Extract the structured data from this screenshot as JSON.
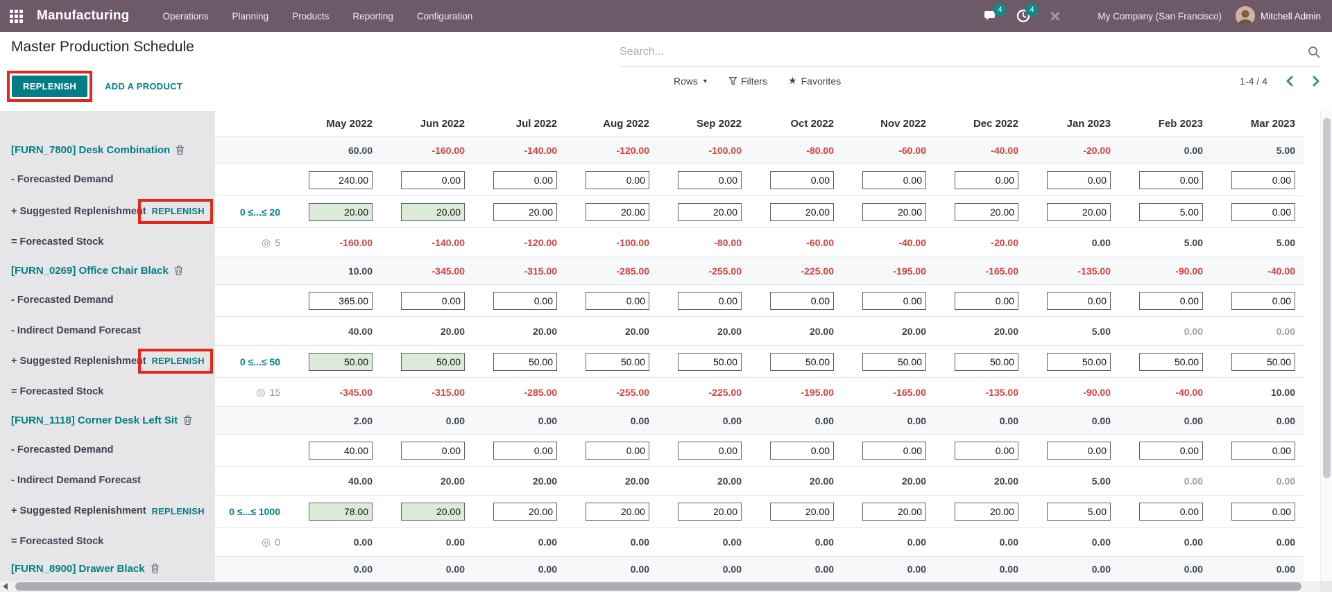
{
  "navbar": {
    "app": "Manufacturing",
    "menus": [
      "Operations",
      "Planning",
      "Products",
      "Reporting",
      "Configuration"
    ],
    "messages_badge": "4",
    "activities_badge": "4",
    "company": "My Company (San Francisco)",
    "user": "Mitchell Admin"
  },
  "control_panel": {
    "title": "Master Production Schedule",
    "replenish_button": "REPLENISH",
    "add_product": "ADD A PRODUCT",
    "search_placeholder": "Search...",
    "rows_button": "Rows",
    "filters_button": "Filters",
    "favorites_button": "Favorites",
    "pager": "1-4 / 4"
  },
  "colors": {
    "accent": "#017e84",
    "navbar_bg": "#6d5968",
    "badge": "#0c8d87",
    "negative": "#d64040",
    "annotation": "#e3271d",
    "green_cell": "#dcebd8"
  },
  "table": {
    "months": [
      "May 2022",
      "Jun 2022",
      "Jul 2022",
      "Aug 2022",
      "Sep 2022",
      "Oct 2022",
      "Nov 2022",
      "Dec 2022",
      "Jan 2023",
      "Feb 2023",
      "Mar 2023"
    ],
    "labels": {
      "demand": "- Forecasted Demand",
      "indirect": "- Indirect Demand Forecast",
      "replenishment": "+ Suggested Replenishment",
      "replenish_link": "REPLENISH",
      "stock": "= Forecasted Stock",
      "target_icon": "◎"
    },
    "products": [
      {
        "name": "[FURN_7800] Desk Combination",
        "summary": [
          "60.00",
          "-160.00",
          "-140.00",
          "-120.00",
          "-100.00",
          "-80.00",
          "-60.00",
          "-40.00",
          "-20.00",
          "0.00",
          "5.00"
        ],
        "demand": [
          "240.00",
          "0.00",
          "0.00",
          "0.00",
          "0.00",
          "0.00",
          "0.00",
          "0.00",
          "0.00",
          "0.00",
          "0.00"
        ],
        "indirect": null,
        "indirect_muted": [],
        "replenishment": [
          "20.00",
          "20.00",
          "20.00",
          "20.00",
          "20.00",
          "20.00",
          "20.00",
          "20.00",
          "20.00",
          "5.00",
          "0.00"
        ],
        "replenishment_green": [
          0,
          1
        ],
        "range": "0 ≤...≤ 20",
        "target": "5",
        "stock": [
          "-160.00",
          "-140.00",
          "-120.00",
          "-100.00",
          "-80.00",
          "-60.00",
          "-40.00",
          "-20.00",
          "0.00",
          "5.00",
          "5.00"
        ],
        "replenish_annotated": true,
        "summary_only": false
      },
      {
        "name": "[FURN_0269] Office Chair Black",
        "summary": [
          "10.00",
          "-345.00",
          "-315.00",
          "-285.00",
          "-255.00",
          "-225.00",
          "-195.00",
          "-165.00",
          "-135.00",
          "-90.00",
          "-40.00"
        ],
        "demand": [
          "365.00",
          "0.00",
          "0.00",
          "0.00",
          "0.00",
          "0.00",
          "0.00",
          "0.00",
          "0.00",
          "0.00",
          "0.00"
        ],
        "indirect": [
          "40.00",
          "20.00",
          "20.00",
          "20.00",
          "20.00",
          "20.00",
          "20.00",
          "20.00",
          "5.00",
          "0.00",
          "0.00"
        ],
        "indirect_muted": [
          9,
          10
        ],
        "replenishment": [
          "50.00",
          "50.00",
          "50.00",
          "50.00",
          "50.00",
          "50.00",
          "50.00",
          "50.00",
          "50.00",
          "50.00",
          "50.00"
        ],
        "replenishment_green": [
          0,
          1
        ],
        "range": "0 ≤...≤ 50",
        "target": "15",
        "stock": [
          "-345.00",
          "-315.00",
          "-285.00",
          "-255.00",
          "-225.00",
          "-195.00",
          "-165.00",
          "-135.00",
          "-90.00",
          "-40.00",
          "10.00"
        ],
        "replenish_annotated": true,
        "summary_only": false
      },
      {
        "name": "[FURN_1118] Corner Desk Left Sit",
        "summary": [
          "2.00",
          "0.00",
          "0.00",
          "0.00",
          "0.00",
          "0.00",
          "0.00",
          "0.00",
          "0.00",
          "0.00",
          "0.00"
        ],
        "demand": [
          "40.00",
          "0.00",
          "0.00",
          "0.00",
          "0.00",
          "0.00",
          "0.00",
          "0.00",
          "0.00",
          "0.00",
          "0.00"
        ],
        "indirect": [
          "40.00",
          "20.00",
          "20.00",
          "20.00",
          "20.00",
          "20.00",
          "20.00",
          "20.00",
          "5.00",
          "0.00",
          "0.00"
        ],
        "indirect_muted": [
          9,
          10
        ],
        "replenishment": [
          "78.00",
          "20.00",
          "20.00",
          "20.00",
          "20.00",
          "20.00",
          "20.00",
          "20.00",
          "5.00",
          "0.00",
          "0.00"
        ],
        "replenishment_green": [
          0,
          1
        ],
        "range": "0 ≤...≤ 1000",
        "target": "0",
        "stock": [
          "0.00",
          "0.00",
          "0.00",
          "0.00",
          "0.00",
          "0.00",
          "0.00",
          "0.00",
          "0.00",
          "0.00",
          "0.00"
        ],
        "replenish_annotated": false,
        "summary_only": false
      },
      {
        "name": "[FURN_8900] Drawer Black",
        "summary": [
          "0.00",
          "0.00",
          "0.00",
          "0.00",
          "0.00",
          "0.00",
          "0.00",
          "0.00",
          "0.00",
          "0.00",
          "0.00"
        ],
        "demand": null,
        "indirect": null,
        "indirect_muted": [],
        "replenishment": null,
        "replenishment_green": [],
        "range": "",
        "target": "",
        "stock": null,
        "replenish_annotated": false,
        "summary_only": true
      }
    ]
  }
}
